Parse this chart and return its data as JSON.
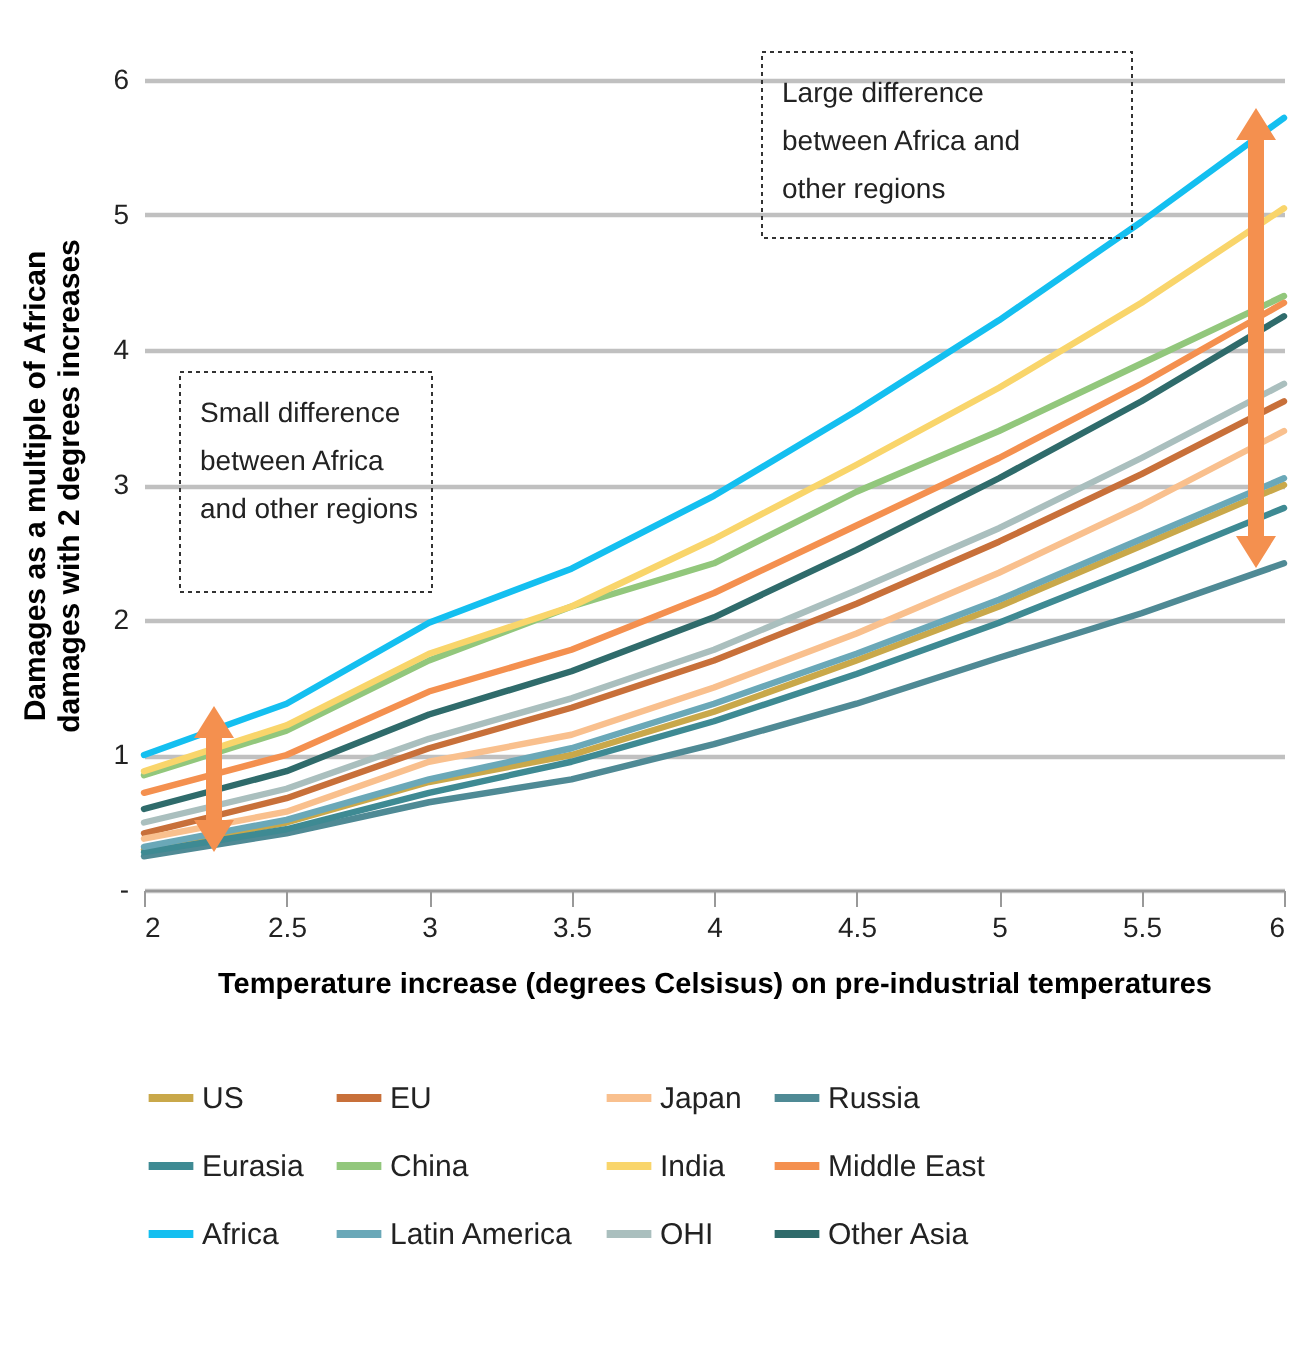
{
  "chart_data": {
    "type": "line",
    "xlabel": "Temperature increase (degrees Celsisus) on pre-industrial temperatures",
    "ylabel": "Damages as a multiple of African damages with 2 degrees increases",
    "x": [
      2,
      2.5,
      3,
      3.5,
      4,
      4.5,
      5,
      5.5,
      6
    ],
    "xlim": [
      2,
      6
    ],
    "xticks": [
      2,
      2.5,
      3,
      3.5,
      4,
      4.5,
      5,
      5.5,
      6
    ],
    "ylim": [
      0,
      6
    ],
    "yticks": [
      {
        "value": 0,
        "label": "-"
      },
      1,
      2,
      3,
      4,
      5,
      6
    ],
    "grid": "y",
    "legend": "bottom",
    "marker": "none",
    "line_style": "solid",
    "annotations": [
      "Small difference between Africa and other regions",
      "Large difference between Africa and other regions"
    ],
    "series": [
      {
        "name": "US",
        "color": "#c9a84a",
        "values": [
          0.3,
          0.5,
          0.8,
          1.0,
          1.32,
          1.7,
          2.1,
          2.55,
          3.0
        ]
      },
      {
        "name": "EU",
        "color": "#c8703a",
        "values": [
          0.42,
          0.68,
          1.05,
          1.35,
          1.7,
          2.12,
          2.58,
          3.08,
          3.62
        ]
      },
      {
        "name": "Japan",
        "color": "#f9c08e",
        "values": [
          0.38,
          0.58,
          0.95,
          1.15,
          1.5,
          1.9,
          2.35,
          2.85,
          3.4
        ]
      },
      {
        "name": "Russia",
        "color": "#4f8a95",
        "values": [
          0.25,
          0.42,
          0.65,
          0.82,
          1.08,
          1.38,
          1.72,
          2.05,
          2.42
        ]
      },
      {
        "name": "Eurasia",
        "color": "#3e8a93",
        "values": [
          0.28,
          0.45,
          0.72,
          0.95,
          1.25,
          1.6,
          1.98,
          2.4,
          2.83
        ]
      },
      {
        "name": "China",
        "color": "#92c77c",
        "values": [
          0.85,
          1.18,
          1.7,
          2.1,
          2.42,
          2.95,
          3.4,
          3.9,
          4.4
        ]
      },
      {
        "name": "India",
        "color": "#f9d56b",
        "values": [
          0.88,
          1.22,
          1.75,
          2.1,
          2.6,
          3.15,
          3.72,
          4.35,
          5.05
        ]
      },
      {
        "name": "Middle East",
        "color": "#f4904f",
        "values": [
          0.72,
          1.0,
          1.47,
          1.78,
          2.2,
          2.7,
          3.2,
          3.75,
          4.35
        ]
      },
      {
        "name": "Africa",
        "color": "#14bff0",
        "values": [
          1.0,
          1.38,
          1.98,
          2.38,
          2.92,
          3.55,
          4.22,
          4.95,
          5.72
        ]
      },
      {
        "name": "Latin America",
        "color": "#6aa8b8",
        "values": [
          0.32,
          0.52,
          0.82,
          1.05,
          1.38,
          1.75,
          2.15,
          2.6,
          3.05
        ]
      },
      {
        "name": "OHI",
        "color": "#aabfbe",
        "values": [
          0.5,
          0.75,
          1.12,
          1.42,
          1.78,
          2.22,
          2.68,
          3.2,
          3.75
        ]
      },
      {
        "name": "Other Asia",
        "color": "#2f6b6b",
        "values": [
          0.6,
          0.88,
          1.3,
          1.62,
          2.02,
          2.52,
          3.05,
          3.62,
          4.25
        ]
      }
    ]
  }
}
